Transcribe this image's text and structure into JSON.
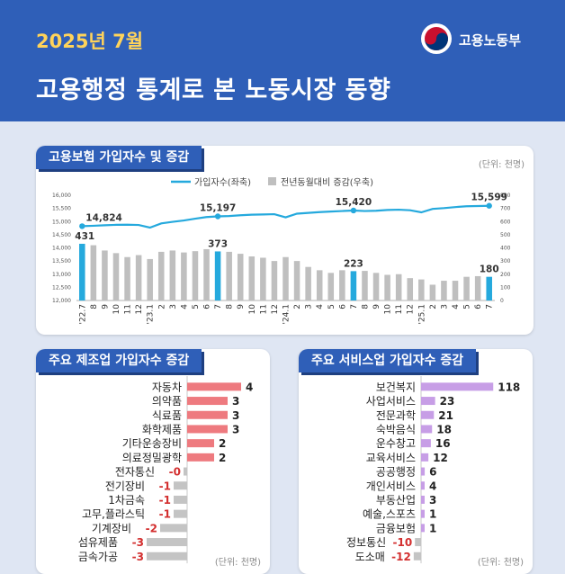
{
  "header": {
    "date": "2025년 7월",
    "title": "고용행정 통계로 본 노동시장 동향",
    "logo_text": "고용노동부"
  },
  "colors": {
    "header_bg": "#2f5fb8",
    "date_text": "#ffd35a",
    "line": "#25a9dd",
    "bar_gray": "#bfbfbf",
    "bar_highlight": "#25a9dd",
    "manufacturing_pos": "#ee7a7f",
    "services_pos": "#c79ee6",
    "negative_bar": "#c4c4c4",
    "negative_text": "#d32f2f"
  },
  "panel1": {
    "tag": "고용보험 가입자수 및 증감",
    "unit": "(단위: 천명)"
  },
  "panel2": {
    "tag": "주요 제조업 가입자수 증감",
    "unit": "(단위: 천명)"
  },
  "panel3": {
    "tag": "주요 서비스업 가입자수 증감",
    "unit": "(단위: 천명)"
  },
  "chart_data": [
    {
      "type": "bar+line",
      "legend": [
        "가입자수(좌축)",
        "전년동월대비 증감(우축)"
      ],
      "legend_position": "top-center",
      "x_labels": [
        "'22.7",
        "8",
        "9",
        "10",
        "11",
        "12",
        "'23.1",
        "2",
        "3",
        "4",
        "5",
        "6",
        "7",
        "8",
        "9",
        "10",
        "11",
        "12",
        "'24.1",
        "2",
        "3",
        "4",
        "5",
        "6",
        "7",
        "8",
        "9",
        "10",
        "11",
        "12",
        "'25.1",
        "2",
        "3",
        "4",
        "5",
        "6",
        "7"
      ],
      "y_left_ticks": [
        "16,000",
        "15,500",
        "15,000",
        "14,500",
        "14,000",
        "13,500",
        "13,000",
        "12,500",
        "12,000"
      ],
      "y_left_range": [
        12000,
        16000
      ],
      "y_right_ticks": [
        "800",
        "700",
        "600",
        "500",
        "400",
        "300",
        "200",
        "100",
        "0"
      ],
      "y_right_range": [
        0,
        800
      ],
      "subscribers": [
        14824,
        14840,
        14860,
        14875,
        14880,
        14870,
        14770,
        14930,
        14990,
        15040,
        15110,
        15170,
        15197,
        15210,
        15240,
        15260,
        15270,
        15280,
        15160,
        15300,
        15330,
        15360,
        15380,
        15400,
        15420,
        15400,
        15410,
        15440,
        15450,
        15430,
        15350,
        15480,
        15510,
        15550,
        15580,
        15590,
        15599
      ],
      "changes": [
        431,
        420,
        380,
        360,
        330,
        345,
        315,
        370,
        380,
        365,
        375,
        390,
        373,
        370,
        355,
        335,
        325,
        300,
        330,
        300,
        255,
        230,
        210,
        230,
        223,
        225,
        210,
        195,
        200,
        170,
        160,
        120,
        150,
        150,
        180,
        185,
        180
      ],
      "highlighted_indices": [
        0,
        12,
        24,
        36
      ],
      "line_labels": [
        {
          "index": 0,
          "text": "14,824"
        },
        {
          "index": 12,
          "text": "15,197"
        },
        {
          "index": 24,
          "text": "15,420"
        },
        {
          "index": 36,
          "text": "15,599"
        }
      ],
      "bar_labels": [
        {
          "index": 0,
          "text": "431"
        },
        {
          "index": 12,
          "text": "373"
        },
        {
          "index": 24,
          "text": "223"
        },
        {
          "index": 36,
          "text": "180"
        }
      ]
    },
    {
      "type": "bar",
      "orientation": "horizontal",
      "categories": [
        "자동차",
        "의약품",
        "식료품",
        "화학제품",
        "기타운송장비",
        "의료정밀광학",
        "전자통신",
        "전기장비",
        "1차금속",
        "고무,플라스틱",
        "기계장비",
        "섬유제품",
        "금속가공"
      ],
      "values": [
        4,
        3,
        3,
        3,
        2,
        2,
        -0.2,
        -1,
        -1,
        -1,
        -2,
        -3,
        -3
      ],
      "value_labels": [
        "4",
        "3",
        "3",
        "3",
        "2",
        "2",
        "-0",
        "-1",
        "-1",
        "-1",
        "-2",
        "-3",
        "-3"
      ]
    },
    {
      "type": "bar",
      "orientation": "horizontal",
      "categories": [
        "보건복지",
        "사업서비스",
        "전문과학",
        "숙박음식",
        "운수창고",
        "교육서비스",
        "공공행정",
        "개인서비스",
        "부동산업",
        "예술,스포츠",
        "금융보험",
        "정보통신",
        "도소매"
      ],
      "values": [
        118,
        23,
        21,
        18,
        16,
        12,
        6,
        4,
        3,
        1,
        1,
        -10,
        -12
      ],
      "value_labels": [
        "118",
        "23",
        "21",
        "18",
        "16",
        "12",
        "6",
        "4",
        "3",
        "1",
        "1",
        "-10",
        "-12"
      ]
    }
  ]
}
